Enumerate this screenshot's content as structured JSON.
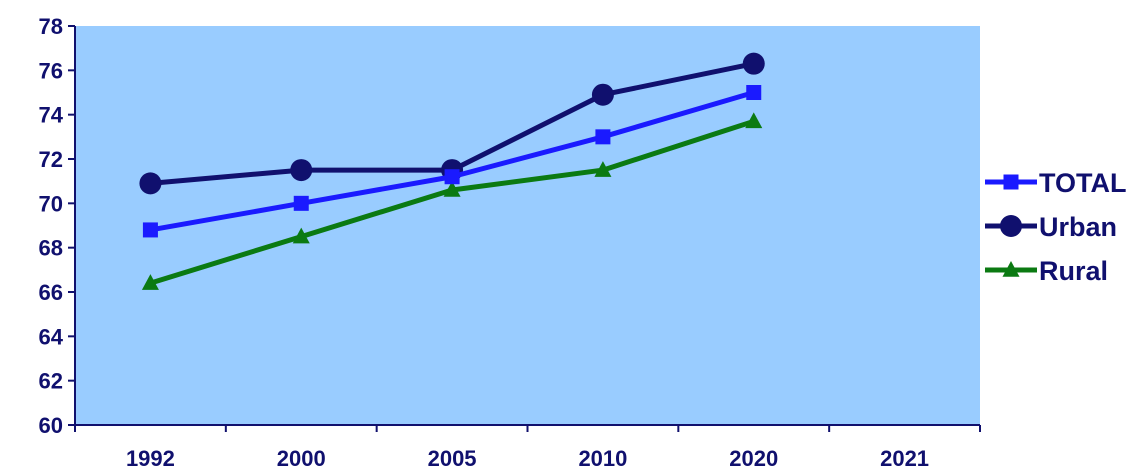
{
  "chart_data": {
    "type": "line",
    "categories": [
      "1992",
      "2000",
      "2005",
      "2010",
      "2020",
      "2021"
    ],
    "ylim": [
      60,
      78
    ],
    "yticks": [
      60,
      62,
      64,
      66,
      68,
      70,
      72,
      74,
      76,
      78
    ],
    "grid": false,
    "legend_position": "right",
    "plot_background": "#99ccff",
    "axis_color": "#10106e",
    "series": [
      {
        "name": "TOTAL",
        "color": "#1a1aff",
        "marker": "square",
        "values": [
          68.8,
          70.0,
          71.2,
          73.0,
          75.0,
          null
        ]
      },
      {
        "name": "Urban",
        "color": "#10106e",
        "marker": "circle",
        "values": [
          70.9,
          71.5,
          71.5,
          74.9,
          76.3,
          null
        ]
      },
      {
        "name": "Rural",
        "color": "#0b7a12",
        "marker": "triangle",
        "values": [
          66.4,
          68.5,
          70.6,
          71.5,
          73.7,
          null
        ]
      }
    ]
  }
}
